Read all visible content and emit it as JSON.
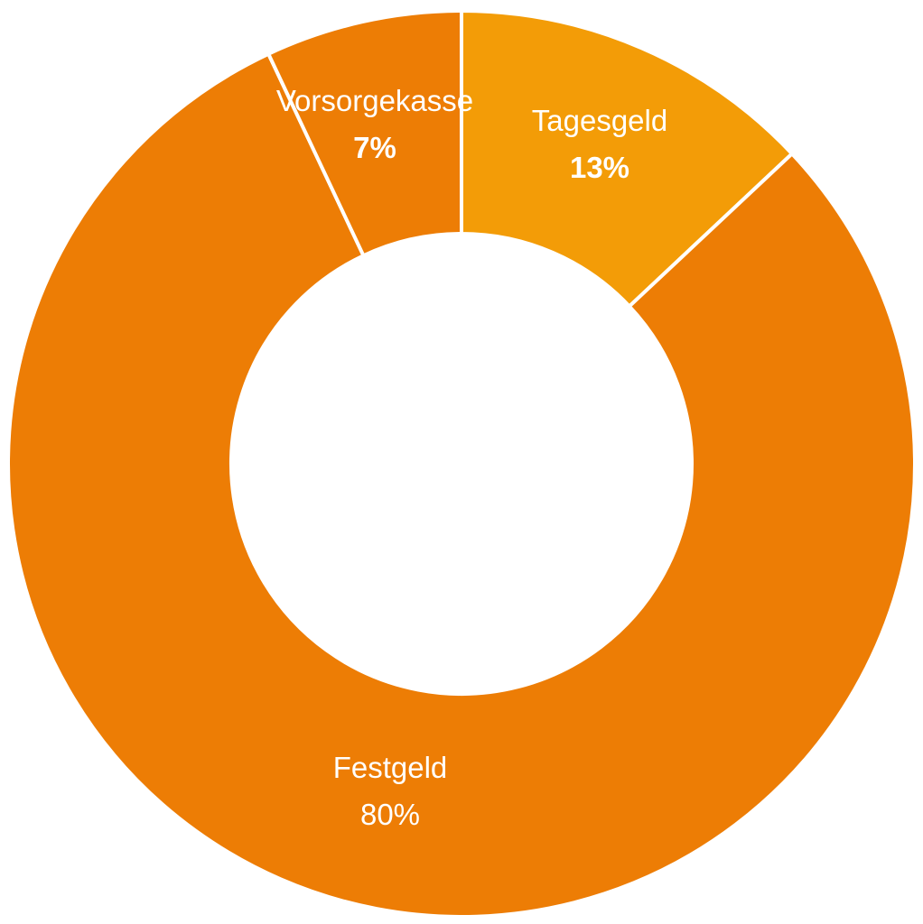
{
  "chart_data": {
    "type": "pie",
    "variant": "donut",
    "title": "",
    "slices": [
      {
        "label": "Tagesgeld",
        "value": 13,
        "value_label": "13%",
        "color": "#f39c07",
        "bold_value": true
      },
      {
        "label": "Festgeld",
        "value": 80,
        "value_label": "80%",
        "color": "#ed7d05",
        "bold_value": false
      },
      {
        "label": "Vorsorgekasse",
        "value": 7,
        "value_label": "7%",
        "color": "#ed7d05",
        "bold_value": true
      }
    ],
    "start_angle": "12 o'clock",
    "direction": "clockwise",
    "separator_color": "#ffffff",
    "legend": "none"
  }
}
